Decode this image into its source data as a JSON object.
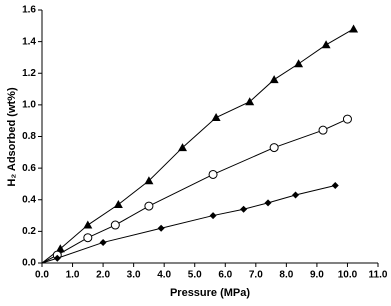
{
  "chart_data": {
    "type": "scatter",
    "x_label": "Pressure (MPa)",
    "y_label": "H₂ Adsorbed (wt%)",
    "xlim": [
      0,
      11
    ],
    "ylim": [
      0,
      1.6
    ],
    "xticks": [
      {
        "value": 0,
        "label": "0.0"
      },
      {
        "value": 1,
        "label": "1.0"
      },
      {
        "value": 2,
        "label": "2.0"
      },
      {
        "value": 3,
        "label": "3.0"
      },
      {
        "value": 4,
        "label": "4.0"
      },
      {
        "value": 5,
        "label": "5.0"
      },
      {
        "value": 6,
        "label": "6.0"
      },
      {
        "value": 7,
        "label": "7.0"
      },
      {
        "value": 8,
        "label": "8.0"
      },
      {
        "value": 9,
        "label": "9.0"
      },
      {
        "value": 10,
        "label": "10.0"
      },
      {
        "value": 11,
        "label": "11.0"
      }
    ],
    "yticks": [
      {
        "value": 0,
        "label": "0.0"
      },
      {
        "value": 0.2,
        "label": "0.2"
      },
      {
        "value": 0.4,
        "label": "0.4"
      },
      {
        "value": 0.6,
        "label": "0.6"
      },
      {
        "value": 0.8,
        "label": "0.8"
      },
      {
        "value": 1,
        "label": "1.0"
      },
      {
        "value": 1.2,
        "label": "1.2"
      },
      {
        "value": 1.4,
        "label": "1.4"
      },
      {
        "value": 1.6,
        "label": "1.6"
      }
    ],
    "series": [
      {
        "marker": "triangle",
        "color": "#000000",
        "x": [
          0.6,
          1.5,
          2.5,
          3.5,
          4.6,
          5.7,
          6.8,
          7.6,
          8.4,
          9.3,
          10.2
        ],
        "values": [
          0.09,
          0.24,
          0.37,
          0.52,
          0.73,
          0.92,
          1.02,
          1.16,
          1.26,
          1.38,
          1.48
        ]
      },
      {
        "marker": "circle",
        "color": "#000000",
        "x": [
          0.5,
          1.5,
          2.4,
          3.5,
          5.6,
          7.6,
          9.2,
          10.0
        ],
        "values": [
          0.05,
          0.16,
          0.24,
          0.36,
          0.56,
          0.73,
          0.84,
          0.91
        ]
      },
      {
        "marker": "diamond",
        "color": "#000000",
        "x": [
          0.5,
          2.0,
          3.9,
          5.6,
          6.6,
          7.4,
          8.3,
          9.6
        ],
        "values": [
          0.03,
          0.13,
          0.22,
          0.3,
          0.34,
          0.38,
          0.43,
          0.49
        ]
      }
    ]
  }
}
